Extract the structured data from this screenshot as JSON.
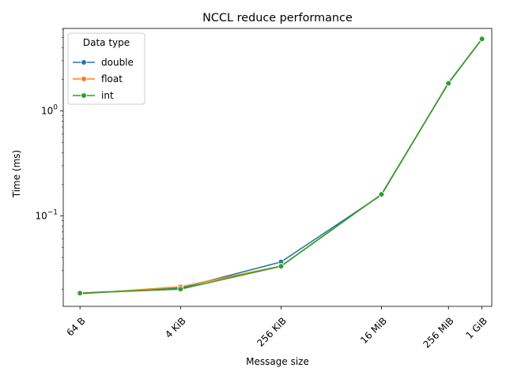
{
  "chart_data": {
    "type": "line",
    "title": "NCCL reduce performance",
    "xlabel": "Message size",
    "ylabel": "Time (ms)",
    "x_scale": "log2",
    "y_scale": "log10",
    "xlim_bytes": [
      32,
      1610612736
    ],
    "ylim_ms": [
      0.0137,
      6.1
    ],
    "x_ticks": [
      {
        "bytes": 64,
        "label": "64 B"
      },
      {
        "bytes": 4096,
        "label": "4 KiB"
      },
      {
        "bytes": 262144,
        "label": "256 KiB"
      },
      {
        "bytes": 16777216,
        "label": "16 MiB"
      },
      {
        "bytes": 268435456,
        "label": "256 MiB"
      },
      {
        "bytes": 1073741824,
        "label": "1 GiB"
      }
    ],
    "y_major_ticks": [
      {
        "value": 0.1,
        "base": "10",
        "exp": "−1"
      },
      {
        "value": 1,
        "base": "10",
        "exp": "0"
      }
    ],
    "y_minor_ticks": [
      0.02,
      0.03,
      0.04,
      0.05,
      0.06,
      0.07,
      0.08,
      0.09,
      0.2,
      0.3,
      0.4,
      0.5,
      0.6,
      0.7,
      0.8,
      0.9,
      2,
      3,
      4,
      5,
      6
    ],
    "x": [
      64,
      4096,
      262144,
      16777216,
      268435456,
      1073741824
    ],
    "series": [
      {
        "name": "double",
        "color": "#1f77b4",
        "values": [
          0.0183,
          0.0204,
          0.0363,
          0.158,
          1.85,
          4.85
        ]
      },
      {
        "name": "float",
        "color": "#ff7f0e",
        "values": [
          0.018,
          0.021,
          0.0332,
          0.16,
          1.84,
          4.84
        ]
      },
      {
        "name": "int",
        "color": "#2ca02c",
        "values": [
          0.0183,
          0.02,
          0.033,
          0.16,
          1.83,
          4.85
        ]
      }
    ],
    "legend": {
      "title": "Data type",
      "placement": "top-left"
    },
    "grid": false
  }
}
